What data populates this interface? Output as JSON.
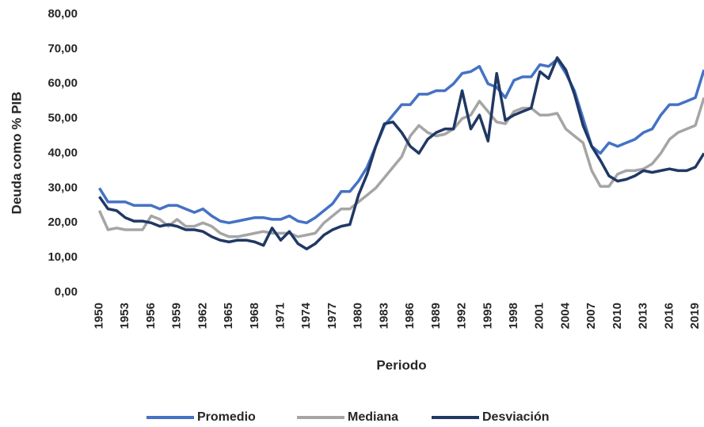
{
  "chart_data": {
    "type": "line",
    "y_label": "Deuda como % PIB",
    "x_label": "Periodo",
    "x": [
      1950,
      1951,
      1952,
      1953,
      1954,
      1955,
      1956,
      1957,
      1958,
      1959,
      1960,
      1961,
      1962,
      1963,
      1964,
      1965,
      1966,
      1967,
      1968,
      1969,
      1970,
      1971,
      1972,
      1973,
      1974,
      1975,
      1976,
      1977,
      1978,
      1979,
      1980,
      1981,
      1982,
      1983,
      1984,
      1985,
      1986,
      1987,
      1988,
      1989,
      1990,
      1991,
      1992,
      1993,
      1994,
      1995,
      1996,
      1997,
      1998,
      1999,
      2000,
      2001,
      2002,
      2003,
      2004,
      2005,
      2006,
      2007,
      2008,
      2009,
      2010,
      2011,
      2012,
      2013,
      2014,
      2015,
      2016,
      2017,
      2018,
      2019,
      2020
    ],
    "xlim": [
      1949.5,
      2020
    ],
    "xticks": [
      1950,
      1953,
      1956,
      1959,
      1962,
      1965,
      1968,
      1971,
      1974,
      1977,
      1980,
      1983,
      1986,
      1989,
      1992,
      1995,
      1998,
      2001,
      2004,
      2007,
      2010,
      2013,
      2016,
      2019
    ],
    "ylim": [
      0,
      80
    ],
    "yticks": [
      {
        "value": 0,
        "label": "0,00"
      },
      {
        "value": 10,
        "label": "10,00"
      },
      {
        "value": 20,
        "label": "20,00"
      },
      {
        "value": 30,
        "label": "30,00"
      },
      {
        "value": 40,
        "label": "40,00"
      },
      {
        "value": 50,
        "label": "50,00"
      },
      {
        "value": 60,
        "label": "60,00"
      },
      {
        "value": 70,
        "label": "70,00"
      },
      {
        "value": 80,
        "label": "80,00"
      }
    ],
    "legend": "bottom",
    "series": [
      {
        "name": "Promedio",
        "color": "#4472c4",
        "values": [
          30,
          26,
          26,
          26,
          25,
          25,
          25,
          24,
          25,
          25,
          24,
          23,
          24,
          22,
          20.5,
          20,
          20.5,
          21,
          21.5,
          21.5,
          21,
          21,
          22,
          20.5,
          20,
          21.5,
          23.5,
          25.5,
          29,
          29,
          32,
          36,
          42,
          48,
          51,
          54,
          54,
          57,
          57,
          58,
          58,
          60,
          63,
          63.5,
          65,
          60,
          59,
          56,
          61,
          62,
          62,
          65.5,
          65,
          67,
          63,
          58,
          50,
          42,
          40,
          43,
          42,
          43,
          44,
          46,
          47,
          51,
          54,
          54,
          55,
          56,
          64
        ]
      },
      {
        "name": "Mediana",
        "color": "#a5a5a5",
        "values": [
          23.5,
          18,
          18.5,
          18,
          18,
          18,
          22,
          21,
          19,
          21,
          19,
          19,
          20,
          19,
          17,
          16,
          16,
          16.5,
          17,
          17.5,
          17,
          17,
          17,
          16,
          16.5,
          17,
          20,
          22,
          24,
          24,
          26,
          28,
          30,
          33,
          36,
          39,
          45,
          48,
          46,
          45,
          45.5,
          47,
          50,
          51,
          55,
          52,
          49,
          48.5,
          52,
          53,
          53,
          51,
          51,
          51.5,
          47,
          45,
          43,
          35,
          30.5,
          30.5,
          34,
          35,
          35,
          35.5,
          37,
          40,
          44,
          46,
          47,
          48,
          56
        ]
      },
      {
        "name": "Desviación",
        "color": "#203864",
        "values": [
          27.5,
          24,
          23.5,
          21.5,
          20.5,
          20.5,
          20,
          19,
          19.5,
          19,
          18,
          18,
          17.5,
          16,
          15,
          14.5,
          15,
          15,
          14.5,
          13.5,
          18.5,
          15,
          17.5,
          14,
          12.5,
          14,
          16.5,
          18,
          19,
          19.5,
          28,
          34,
          42,
          48.5,
          49,
          46,
          42,
          40,
          44,
          46,
          47,
          47,
          58,
          47,
          51,
          43.5,
          63,
          49.5,
          51,
          52,
          53,
          63.5,
          61.5,
          67.5,
          64,
          57,
          48,
          42,
          38,
          33.5,
          32,
          32.5,
          33.5,
          35,
          34.5,
          35,
          35.5,
          35,
          35,
          36,
          40
        ]
      }
    ]
  }
}
